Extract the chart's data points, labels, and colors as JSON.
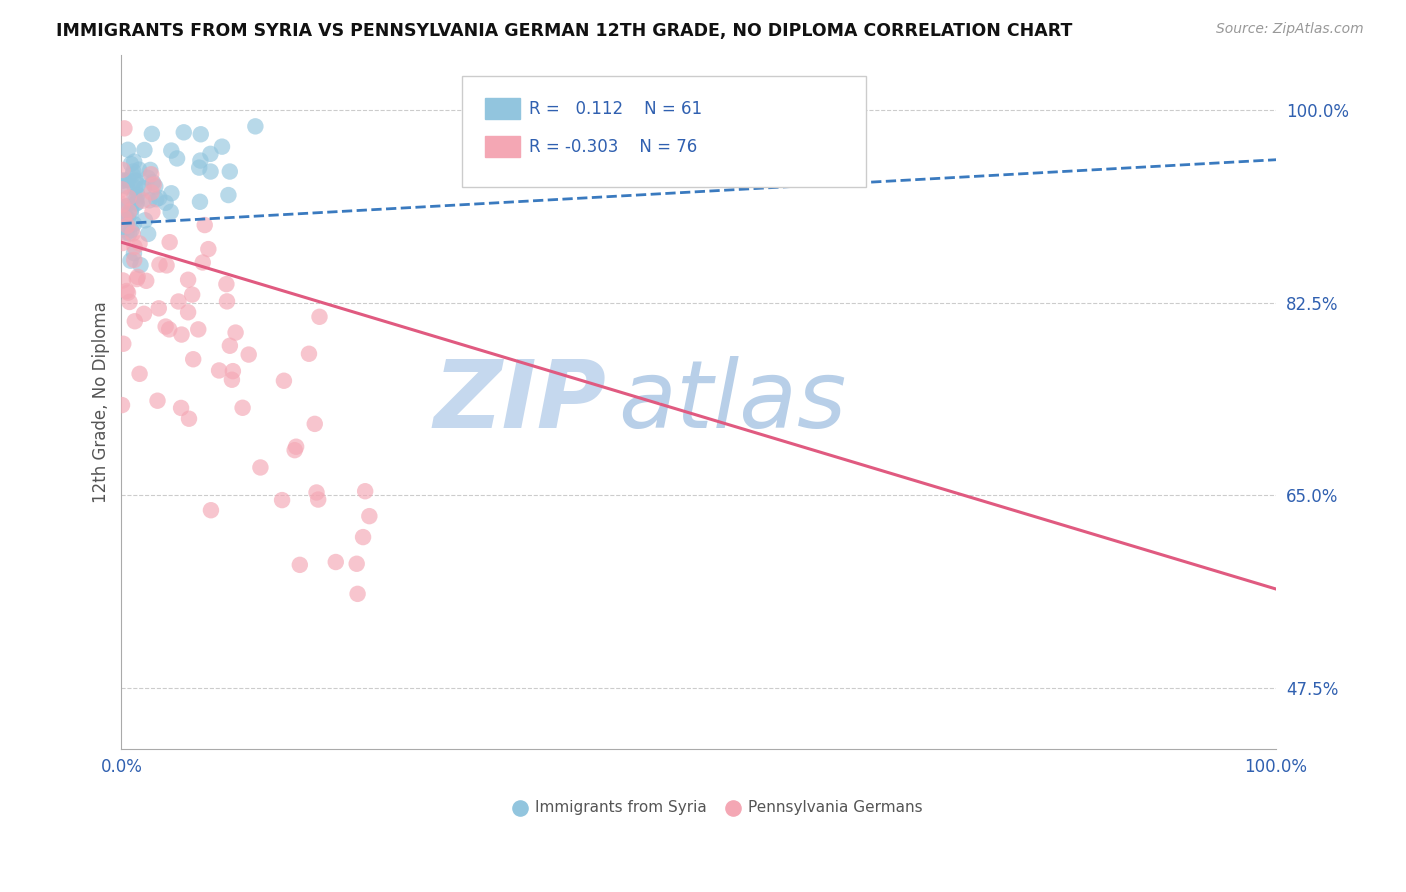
{
  "title": "IMMIGRANTS FROM SYRIA VS PENNSYLVANIA GERMAN 12TH GRADE, NO DIPLOMA CORRELATION CHART",
  "source_text": "Source: ZipAtlas.com",
  "ylabel": "12th Grade, No Diploma",
  "xlim": [
    0.0,
    1.0
  ],
  "ylim": [
    0.42,
    1.05
  ],
  "ytick_positions": [
    0.475,
    0.65,
    0.825,
    1.0
  ],
  "ytick_labels": [
    "47.5%",
    "65.0%",
    "82.5%",
    "100.0%"
  ],
  "xtick_positions": [
    0.0,
    1.0
  ],
  "xtick_labels": [
    "0.0%",
    "100.0%"
  ],
  "legend_blue_r": "R =   0.112",
  "legend_blue_n": "N = 61",
  "legend_pink_r": "R = -0.303",
  "legend_pink_n": "N = 76",
  "blue_color": "#92c5de",
  "pink_color": "#f4a7b4",
  "blue_line_color": "#3a7abf",
  "pink_line_color": "#e05a80",
  "watermark_zip": "ZIP",
  "watermark_atlas": "atlas",
  "watermark_color_zip": "#c5d8ee",
  "watermark_color_atlas": "#b8cfe8",
  "legend_text_color": "#3060b0",
  "tick_color": "#3060b0",
  "grid_color": "#cccccc",
  "spine_color": "#aaaaaa",
  "title_color": "#111111",
  "source_color": "#999999",
  "bottom_label_color": "#555555",
  "blue_trend_start_x": 0.0,
  "blue_trend_start_y": 0.897,
  "blue_trend_end_x": 1.0,
  "blue_trend_end_y": 0.955,
  "pink_trend_start_x": 0.0,
  "pink_trend_start_y": 0.88,
  "pink_trend_end_x": 1.0,
  "pink_trend_end_y": 0.565
}
